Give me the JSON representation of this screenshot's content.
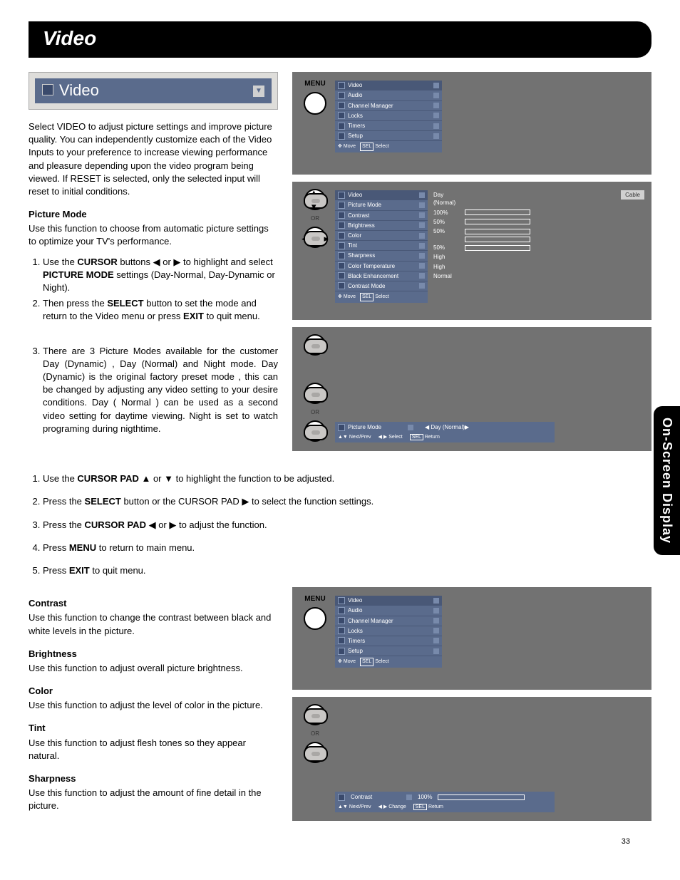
{
  "page_number": "33",
  "title_bar": "Video",
  "side_tab": "On-Screen Display",
  "video_header": "Video",
  "intro": "Select VIDEO to adjust picture settings and improve picture quality. You can independently customize each of the Video Inputs to your preference to increase viewing performance and pleasure depending upon the video program being viewed. If RESET is selected, only the selected input will reset to initial conditions.",
  "picture_mode": {
    "title": "Picture Mode",
    "intro": "Use this function to choose from automatic picture settings to optimize your TV's performance.",
    "step1_a": "Use the ",
    "step1_b": "CURSOR",
    "step1_c": " buttons ◀ or ▶ to highlight and select ",
    "step1_d": "PICTURE MODE",
    "step1_e": " settings (Day-Normal, Day-Dynamic or Night).",
    "step2_a": "Then press the ",
    "step2_b": "SELECT",
    "step2_c": " button to set the mode and return to the Video menu or press ",
    "step2_d": "EXIT",
    "step2_e": " to quit menu.",
    "note3": "There are 3 Picture Modes  available for the customer Day (Dynamic) , Day (Normal) and Night mode. Day (Dynamic) is the original factory preset mode , this can be changed by adjusting any video setting  to your desire conditions. Day ( Normal ) can be used as a second video setting for daytime viewing. Night is set to watch programing during nigthtime."
  },
  "full_steps": {
    "s1a": "Use the ",
    "s1b": "CURSOR PAD",
    "s1c": " ▲ or ▼ to highlight the function to be adjusted.",
    "s2a": "Press the ",
    "s2b": "SELECT",
    "s2c": " button or the CURSOR PAD ▶ to select the function settings.",
    "s3a": "Press the ",
    "s3b": "CURSOR PAD",
    "s3c": " ◀ or ▶ to adjust the function.",
    "s4a": "Press ",
    "s4b": "MENU",
    "s4c": " to return to main menu.",
    "s5a": "Press ",
    "s5b": "EXIT",
    "s5c": " to quit menu."
  },
  "subsections": {
    "contrast_t": "Contrast",
    "contrast_d": "Use this function to change the contrast between black and white levels in the picture.",
    "brightness_t": "Brightness",
    "brightness_d": "Use this function to adjust overall picture brightness.",
    "color_t": "Color",
    "color_d": "Use this function to adjust the level of color in the picture.",
    "tint_t": "Tint",
    "tint_d": "Use this function to adjust flesh tones so they appear natural.",
    "sharpness_t": "Sharpness",
    "sharpness_d": "Use this function to adjust the amount of fine detail in the picture."
  },
  "menu_label": "MENU",
  "or_label": "OR",
  "osd_main": {
    "items": [
      "Video",
      "Audio",
      "Channel Manager",
      "Locks",
      "Timers",
      "Setup"
    ],
    "foot_move": "Move",
    "foot_sel": "Select",
    "foot_sel_key": "SEL"
  },
  "osd_video": {
    "title": "Video",
    "cable": "Cable",
    "rows": [
      {
        "label": "Picture Mode",
        "val": "Day (Normal)",
        "bar": 0
      },
      {
        "label": "Contrast",
        "val": "100%",
        "bar": 100
      },
      {
        "label": "Brightness",
        "val": "50%",
        "bar": 50
      },
      {
        "label": "Color",
        "val": "50%",
        "bar": 50
      },
      {
        "label": "Tint",
        "val": "",
        "bar": 50
      },
      {
        "label": "Sharpness",
        "val": "50%",
        "bar": 50
      },
      {
        "label": "Color Temperature",
        "val": "High",
        "bar": 0
      },
      {
        "label": "Black Enhancement",
        "val": "High",
        "bar": 0
      },
      {
        "label": "Contrast Mode",
        "val": "Normal",
        "bar": 0
      }
    ],
    "foot_move": "Move",
    "foot_sel": "Select",
    "foot_sel_key": "SEL"
  },
  "osd_pm_bar": {
    "label": "Picture Mode",
    "val": "◀ Day (Normal)▶",
    "foot_np": "Next/Prev",
    "foot_sel": "Select",
    "foot_ret": "Return",
    "foot_ret_key": "SEL",
    "foot_arrows": "◀ ▶",
    "foot_ud": "▲▼"
  },
  "osd_contrast_bar": {
    "label": "Contrast",
    "val": "100%",
    "foot_np": "Next/Prev",
    "foot_chg": "Change",
    "foot_ret": "Return",
    "foot_ret_key": "SEL",
    "foot_arrows": "◀ ▶",
    "foot_ud": "▲▼"
  }
}
